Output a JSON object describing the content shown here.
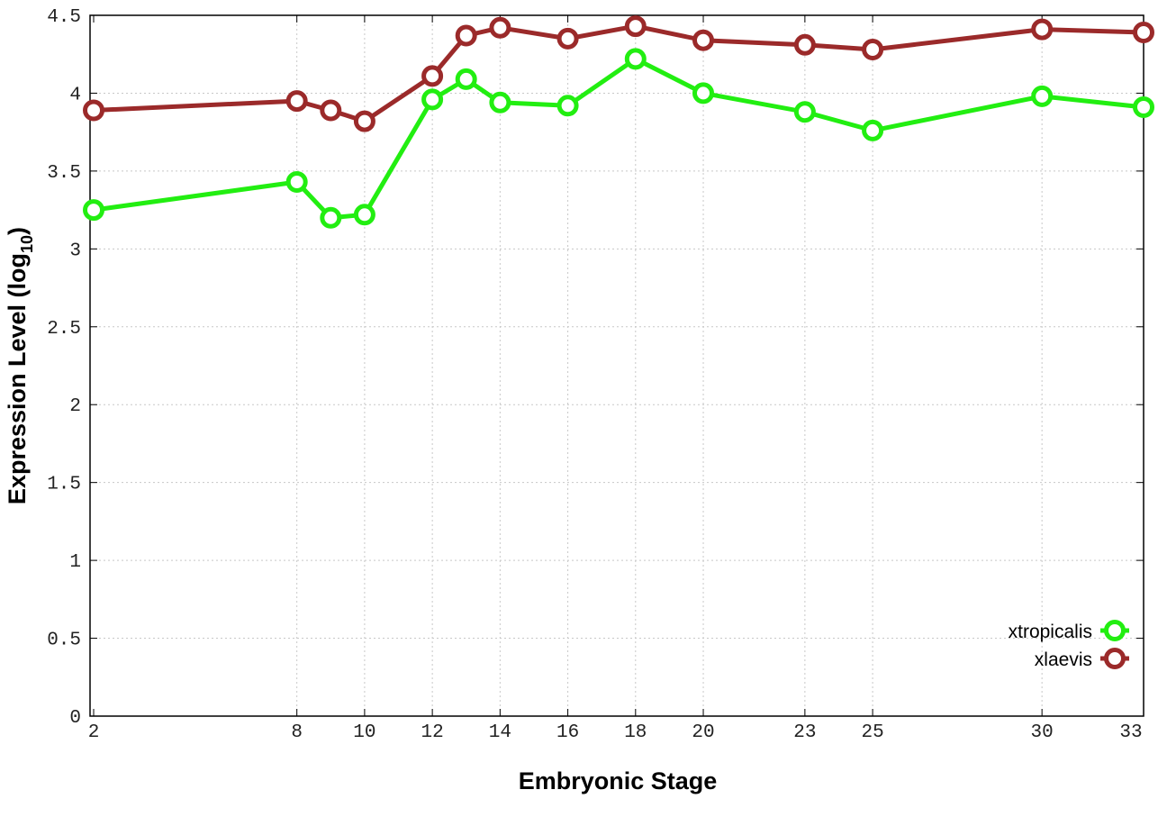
{
  "chart_data": {
    "type": "line",
    "xlabel": "Embryonic Stage",
    "ylabel": "Expression Level (log",
    "ylabel_sub": "10",
    "ylabel_close": ")",
    "ylim": [
      0,
      4.5
    ],
    "yticks": [
      0,
      0.5,
      1,
      1.5,
      2,
      2.5,
      3,
      3.5,
      4,
      4.5
    ],
    "ytick_labels": [
      "0",
      "0.5",
      "1",
      "1.5",
      "2",
      "2.5",
      "3",
      "3.5",
      "4",
      "4.5"
    ],
    "categories": [
      "2",
      "8",
      "9",
      "10",
      "12",
      "13",
      "14",
      "16",
      "18",
      "20",
      "23",
      "25",
      "30",
      "33"
    ],
    "xtick_labels": [
      "2",
      "8",
      "10",
      "12",
      "14",
      "16",
      "18",
      "20",
      "23",
      "25",
      "30",
      "33"
    ],
    "grid": true,
    "legend_position": "bottom-right",
    "series": [
      {
        "name": "xtropicalis",
        "color": "#22ee11",
        "values": [
          3.25,
          3.43,
          3.2,
          3.22,
          3.96,
          4.09,
          3.94,
          3.92,
          4.22,
          4.0,
          3.88,
          3.76,
          3.98,
          3.91
        ]
      },
      {
        "name": "xlaevis",
        "color": "#9b2a2a",
        "values": [
          3.89,
          3.95,
          3.89,
          3.82,
          4.11,
          4.37,
          4.42,
          4.35,
          4.43,
          4.34,
          4.31,
          4.28,
          4.41,
          4.39
        ]
      }
    ]
  }
}
